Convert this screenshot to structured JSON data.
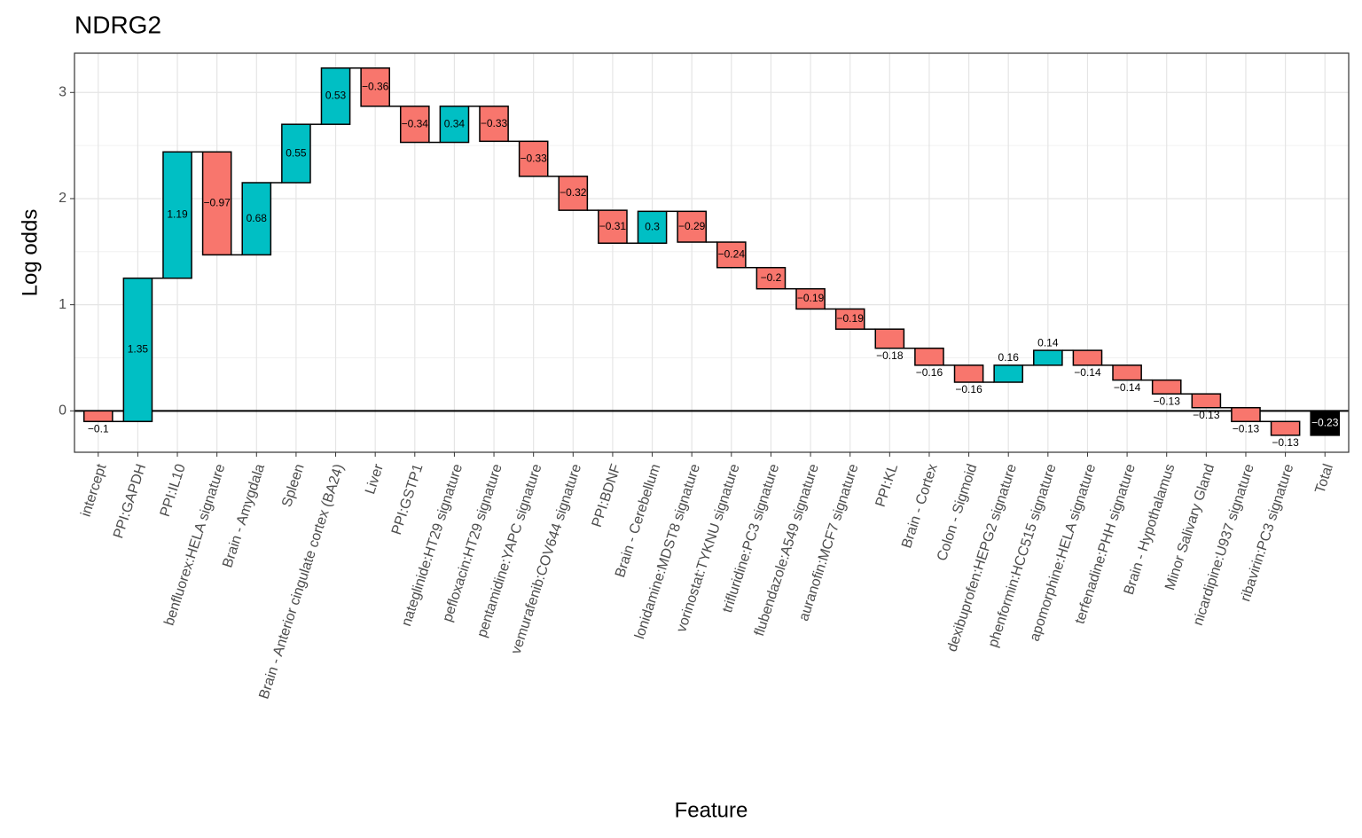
{
  "chart_data": {
    "type": "waterfall",
    "title": "NDRG2",
    "x_label": "Feature",
    "y_label": "Log odds",
    "categories": [
      "intercept",
      "PPI:GAPDH",
      "PPI:IL10",
      "benfluorex:HELA signature",
      "Brain - Amygdala",
      "Spleen",
      "Brain - Anterior cingulate cortex (BA24)",
      "Liver",
      "PPI:GSTP1",
      "nateglinide:HT29 signature",
      "pefloxacin:HT29 signature",
      "pentamidine:YAPC signature",
      "vemurafenib:COV644 signature",
      "PPI:BDNF",
      "Brain - Cerebellum",
      "lonidamine:MDST8 signature",
      "vorinostat:TYKNU signature",
      "trifluridine:PC3 signature",
      "flubendazole:A549 signature",
      "auranofin:MCF7 signature",
      "PPI:KL",
      "Brain - Cortex",
      "Colon - Sigmoid",
      "dexibuprofen:HEPG2 signature",
      "phenformin:HCC515 signature",
      "apomorphine:HELA signature",
      "terfenadine:PHH signature",
      "Brain - Hypothalamus",
      "Minor Salivary Gland",
      "nicardipine:U937 signature",
      "ribavirin:PC3 signature",
      "Total"
    ],
    "values": [
      -0.1,
      1.35,
      1.19,
      -0.97,
      0.68,
      0.55,
      0.53,
      -0.36,
      -0.34,
      0.34,
      -0.33,
      -0.33,
      -0.32,
      -0.31,
      0.3,
      -0.29,
      -0.24,
      -0.2,
      -0.19,
      -0.19,
      -0.18,
      -0.16,
      -0.16,
      0.16,
      0.14,
      -0.14,
      -0.14,
      -0.13,
      -0.13,
      -0.13,
      -0.13,
      -0.23
    ],
    "value_labels": [
      "−0.1",
      "1.35",
      "1.19",
      "−0.97",
      "0.68",
      "0.55",
      "0.53",
      "−0.36",
      "−0.34",
      "0.34",
      "−0.33",
      "−0.33",
      "−0.32",
      "−0.31",
      "0.3",
      "−0.29",
      "−0.24",
      "−0.2",
      "−0.19",
      "−0.19",
      "−0.18",
      "−0.16",
      "−0.16",
      "0.16",
      "0.14",
      "−0.14",
      "−0.14",
      "−0.13",
      "−0.13",
      "−0.13",
      "−0.13",
      "−0.23"
    ],
    "color_increase": "#00BFC4",
    "color_decrease": "#F8766D",
    "color_total": "#000000",
    "ylim": [
      -0.39,
      3.37
    ],
    "yticks": [
      0,
      1,
      2,
      3
    ],
    "grid": true
  }
}
